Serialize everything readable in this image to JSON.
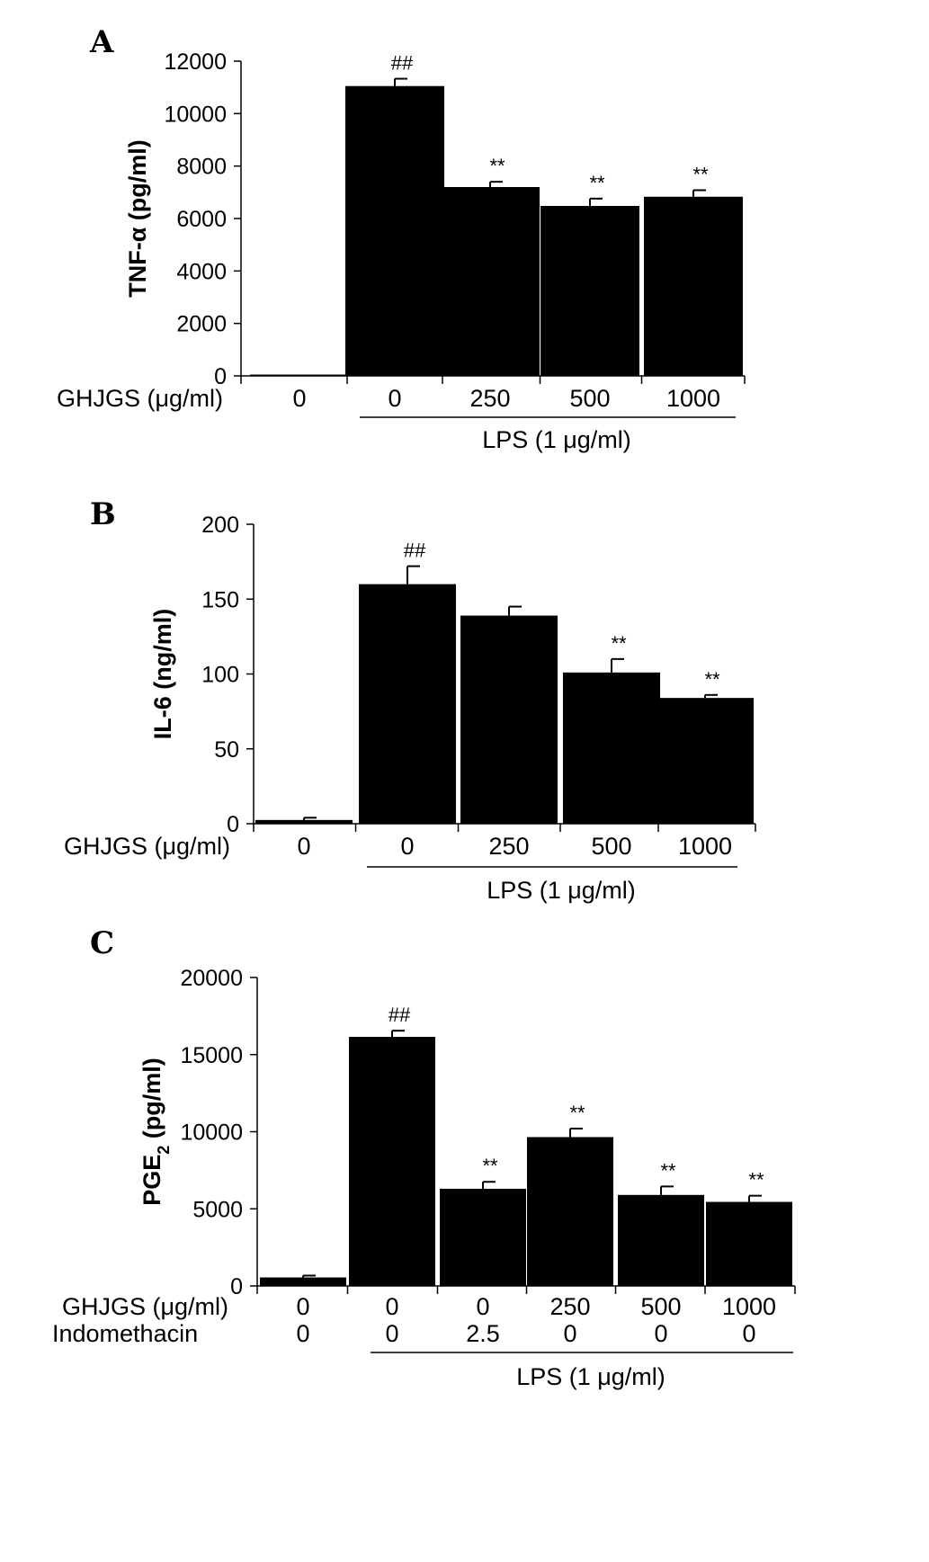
{
  "chart_data": [
    {
      "type": "bar",
      "panel": "A",
      "ylabel": "TNF-α (pg/ml)",
      "ylim": [
        0,
        12000
      ],
      "yticks": [
        "0",
        "2000",
        "4000",
        "6000",
        "8000",
        "10000",
        "12000"
      ],
      "row_labels": [
        "GHJGS (μg/ml)"
      ],
      "categories": [
        [
          "0"
        ],
        [
          "0"
        ],
        [
          "250"
        ],
        [
          "500"
        ],
        [
          "1000"
        ]
      ],
      "values": [
        50,
        11050,
        7200,
        6480,
        6830
      ],
      "errors": [
        0,
        280,
        200,
        280,
        250
      ],
      "annotations": [
        "",
        "##",
        "**",
        "**",
        "**"
      ],
      "group": {
        "label": "LPS (1 μg/ml)",
        "from": 1,
        "to": 4
      },
      "grid": false,
      "legend": "none"
    },
    {
      "type": "bar",
      "panel": "B",
      "ylabel": "IL-6 (ng/ml)",
      "ylim": [
        0,
        200
      ],
      "yticks": [
        "0",
        "50",
        "100",
        "150",
        "200"
      ],
      "row_labels": [
        "GHJGS (μg/ml)"
      ],
      "categories": [
        [
          "0"
        ],
        [
          "0"
        ],
        [
          "250"
        ],
        [
          "500"
        ],
        [
          "1000"
        ]
      ],
      "values": [
        2.5,
        160,
        139,
        101,
        84
      ],
      "errors": [
        1.5,
        12,
        6,
        9,
        2
      ],
      "annotations": [
        "",
        "##",
        "",
        "**",
        "**"
      ],
      "group": {
        "label": "LPS (1 μg/ml)",
        "from": 1,
        "to": 4
      },
      "grid": false,
      "legend": "none"
    },
    {
      "type": "bar",
      "panel": "C",
      "ylabel": "PGE",
      "ylabel_sub": "2",
      "ylabel_unit": " (pg/ml)",
      "ylim": [
        0,
        20000
      ],
      "yticks": [
        "0",
        "5000",
        "10000",
        "15000",
        "20000"
      ],
      "row_labels": [
        "GHJGS (μg/ml)",
        "Indomethacin"
      ],
      "categories": [
        [
          "0",
          "0"
        ],
        [
          "0",
          "0"
        ],
        [
          "0",
          "2.5"
        ],
        [
          "250",
          "0"
        ],
        [
          "500",
          "0"
        ],
        [
          "1000",
          "0"
        ]
      ],
      "values": [
        550,
        16150,
        6300,
        9650,
        5900,
        5450
      ],
      "errors": [
        120,
        400,
        450,
        550,
        550,
        400
      ],
      "annotations": [
        "",
        "##",
        "**",
        "**",
        "**",
        "**"
      ],
      "group": {
        "label": "LPS (1 μg/ml)",
        "from": 1,
        "to": 5
      },
      "grid": false,
      "legend": "none"
    }
  ],
  "icons": {
    "panel_letters": [
      "A",
      "B",
      "C"
    ]
  }
}
